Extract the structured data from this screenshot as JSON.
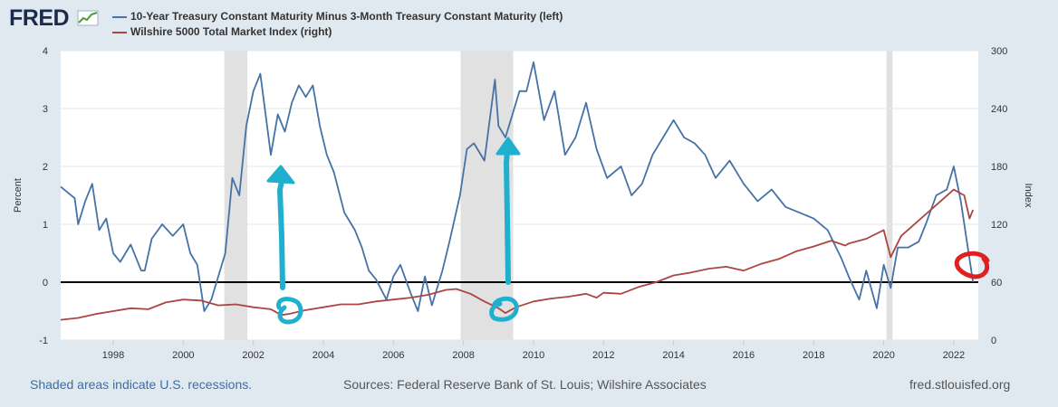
{
  "header": {
    "logo": "FRED",
    "logo_icon": "line-chart-icon"
  },
  "footer": {
    "recession_note": "Shaded areas indicate U.S. recessions.",
    "sources": "Sources: Federal Reserve Bank of St. Louis; Wilshire Associates",
    "site": "fred.stlouisfed.org"
  },
  "colors": {
    "spread": "#4572a7",
    "wilshire": "#aa4643",
    "recession": "#e1e1e1",
    "zero_line": "#000000",
    "annotation_blue": "#1fb0d0",
    "annotation_red": "#e02020"
  },
  "chart_data": {
    "type": "line",
    "title": "",
    "xlabel": "",
    "ylabel": "Percent",
    "ylabel_right": "Index",
    "xlim": [
      1996.5,
      2022.7
    ],
    "ylim": [
      -1,
      4
    ],
    "ylim_right": [
      0,
      300
    ],
    "x_ticks": [
      "1998",
      "2000",
      "2002",
      "2004",
      "2006",
      "2008",
      "2010",
      "2012",
      "2014",
      "2016",
      "2018",
      "2020",
      "2022"
    ],
    "y_ticks": [
      "-1",
      "0",
      "1",
      "2",
      "3",
      "4"
    ],
    "y_ticks_right": [
      "0",
      "60",
      "120",
      "180",
      "240",
      "300"
    ],
    "grid": true,
    "legend_position": "top-left",
    "recessions": [
      [
        2001.17,
        2001.83
      ],
      [
        2007.92,
        2009.42
      ],
      [
        2020.08,
        2020.25
      ]
    ],
    "series": [
      {
        "name": "10-Year Treasury Constant Maturity Minus 3-Month Treasury Constant Maturity (left)",
        "axis": "left",
        "x": [
          1996.5,
          1996.7,
          1996.9,
          1997.0,
          1997.2,
          1997.4,
          1997.6,
          1997.8,
          1998.0,
          1998.2,
          1998.5,
          1998.8,
          1998.9,
          1999.1,
          1999.4,
          1999.7,
          2000.0,
          2000.2,
          2000.4,
          2000.6,
          2000.8,
          2001.0,
          2001.2,
          2001.4,
          2001.6,
          2001.8,
          2002.0,
          2002.2,
          2002.5,
          2002.7,
          2002.9,
          2003.1,
          2003.3,
          2003.5,
          2003.7,
          2003.9,
          2004.1,
          2004.3,
          2004.6,
          2004.9,
          2005.1,
          2005.3,
          2005.5,
          2005.8,
          2006.0,
          2006.2,
          2006.5,
          2006.7,
          2006.9,
          2007.1,
          2007.4,
          2007.6,
          2007.9,
          2008.1,
          2008.3,
          2008.6,
          2008.9,
          2009.0,
          2009.2,
          2009.4,
          2009.6,
          2009.8,
          2010.0,
          2010.3,
          2010.6,
          2010.9,
          2011.2,
          2011.5,
          2011.8,
          2012.1,
          2012.5,
          2012.8,
          2013.1,
          2013.4,
          2013.7,
          2014.0,
          2014.3,
          2014.6,
          2014.9,
          2015.2,
          2015.6,
          2016.0,
          2016.4,
          2016.8,
          2017.2,
          2017.6,
          2018.0,
          2018.4,
          2018.8,
          2019.0,
          2019.3,
          2019.5,
          2019.8,
          2020.0,
          2020.2,
          2020.4,
          2020.7,
          2021.0,
          2021.2,
          2021.5,
          2021.8,
          2022.0,
          2022.2,
          2022.4,
          2022.55
        ],
        "values": [
          1.65,
          1.55,
          1.45,
          1.0,
          1.4,
          1.7,
          0.9,
          1.1,
          0.5,
          0.35,
          0.65,
          0.2,
          0.2,
          0.75,
          1.0,
          0.8,
          1.0,
          0.5,
          0.3,
          -0.5,
          -0.3,
          0.1,
          0.5,
          1.8,
          1.5,
          2.7,
          3.3,
          3.6,
          2.2,
          2.9,
          2.6,
          3.1,
          3.4,
          3.2,
          3.4,
          2.7,
          2.2,
          1.9,
          1.2,
          0.9,
          0.6,
          0.2,
          0.05,
          -0.3,
          0.1,
          0.3,
          -0.2,
          -0.5,
          0.1,
          -0.4,
          0.2,
          0.7,
          1.5,
          2.3,
          2.4,
          2.1,
          3.5,
          2.7,
          2.5,
          2.9,
          3.3,
          3.3,
          3.8,
          2.8,
          3.3,
          2.2,
          2.5,
          3.1,
          2.3,
          1.8,
          2.0,
          1.5,
          1.7,
          2.2,
          2.5,
          2.8,
          2.5,
          2.4,
          2.2,
          1.8,
          2.1,
          1.7,
          1.4,
          1.6,
          1.3,
          1.2,
          1.1,
          0.9,
          0.4,
          0.1,
          -0.3,
          0.2,
          -0.45,
          0.3,
          -0.1,
          0.6,
          0.6,
          0.7,
          1.0,
          1.5,
          1.6,
          2.0,
          1.4,
          0.6,
          0.0
        ]
      },
      {
        "name": "Wilshire 5000 Total Market Index (right)",
        "axis": "right",
        "x": [
          1996.5,
          1997.0,
          1997.5,
          1998.0,
          1998.5,
          1999.0,
          1999.5,
          2000.0,
          2000.5,
          2001.0,
          2001.5,
          2002.0,
          2002.5,
          2002.8,
          2003.0,
          2003.5,
          2004.0,
          2004.5,
          2005.0,
          2005.5,
          2006.0,
          2006.5,
          2007.0,
          2007.5,
          2007.8,
          2008.2,
          2008.6,
          2009.0,
          2009.2,
          2009.5,
          2010.0,
          2010.5,
          2011.0,
          2011.5,
          2011.8,
          2012.0,
          2012.5,
          2013.0,
          2013.5,
          2014.0,
          2014.5,
          2015.0,
          2015.5,
          2016.0,
          2016.5,
          2017.0,
          2017.5,
          2018.0,
          2018.5,
          2018.9,
          2019.0,
          2019.5,
          2020.0,
          2020.2,
          2020.5,
          2021.0,
          2021.5,
          2022.0,
          2022.3,
          2022.45,
          2022.55
        ],
        "values": [
          21,
          23,
          27,
          30,
          33,
          32,
          39,
          42,
          41,
          36,
          37,
          34,
          32,
          26,
          27,
          31,
          34,
          37,
          37,
          40,
          42,
          44,
          47,
          52,
          53,
          48,
          40,
          33,
          28,
          34,
          40,
          43,
          45,
          48,
          44,
          49,
          48,
          55,
          60,
          67,
          70,
          74,
          76,
          72,
          79,
          84,
          92,
          97,
          103,
          98,
          100,
          105,
          114,
          86,
          108,
          124,
          140,
          156,
          150,
          126,
          135
        ]
      }
    ]
  },
  "annotations": [
    {
      "name": "arrow-2002"
    },
    {
      "name": "circle-2002"
    },
    {
      "name": "arrow-2009"
    },
    {
      "name": "circle-2009"
    },
    {
      "name": "circle-2022"
    }
  ]
}
